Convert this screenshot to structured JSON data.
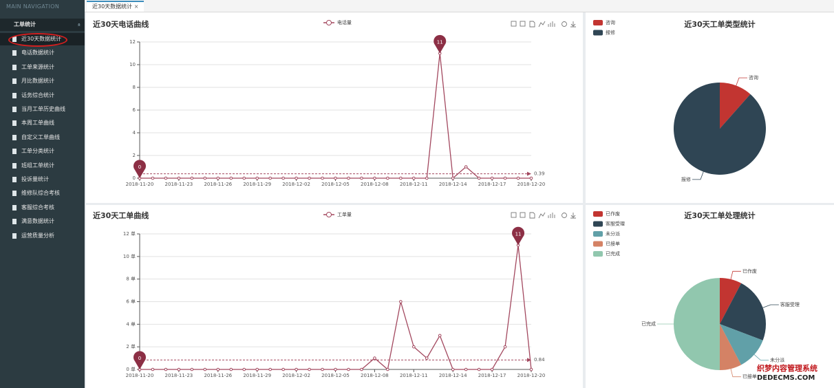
{
  "sidebar": {
    "header": "MAIN NAVIGATION",
    "group": "工单统计",
    "items": [
      "近30天数据统计",
      "电话数据统计",
      "工单来源统计",
      "月比数据统计",
      "话务综合统计",
      "当月工单历史曲线",
      "本周工单曲线",
      "自定义工单曲线",
      "工单分类统计",
      "班组工单统计",
      "投诉量统计",
      "维修队综合考核",
      "客服综合考核",
      "满意数据统计",
      "运营质量分析"
    ]
  },
  "tab": "近30天数据统计",
  "watermark": {
    "line1": "织梦内容管理系统",
    "line2": "DEDECMS.COM"
  },
  "chart_data": [
    {
      "type": "line",
      "title": "近30天电话曲线",
      "categories": [
        "2018-11-20",
        null,
        null,
        "2018-11-23",
        null,
        null,
        "2018-11-26",
        null,
        null,
        "2018-11-29",
        null,
        null,
        "2018-12-02",
        null,
        null,
        "2018-12-05",
        null,
        null,
        "2018-12-08",
        null,
        null,
        "2018-12-11",
        null,
        null,
        "2018-12-14",
        null,
        null,
        "2018-12-17",
        null,
        null,
        "2018-12-20"
      ],
      "series": [
        {
          "name": "电话量",
          "color": "#a2475e",
          "values": [
            0,
            0,
            0,
            0,
            0,
            0,
            0,
            0,
            0,
            0,
            0,
            0,
            0,
            0,
            0,
            0,
            0,
            0,
            0,
            0,
            0,
            0,
            0,
            11,
            0,
            1,
            0,
            0,
            0,
            0,
            0
          ]
        }
      ],
      "average": 0.39,
      "ylim": [
        0,
        12
      ],
      "yticks": [
        0,
        2,
        4,
        6,
        8,
        10,
        12
      ],
      "grid": true
    },
    {
      "type": "line",
      "title": "近30天工单曲线",
      "categories": [
        "2018-11-20",
        null,
        null,
        "2018-11-23",
        null,
        null,
        "2018-11-26",
        null,
        null,
        "2018-11-29",
        null,
        null,
        "2018-12-02",
        null,
        null,
        "2018-12-05",
        null,
        null,
        "2018-12-08",
        null,
        null,
        "2018-12-11",
        null,
        null,
        "2018-12-14",
        null,
        null,
        "2018-12-17",
        null,
        null,
        "2018-12-20"
      ],
      "series": [
        {
          "name": "工单量",
          "color": "#a2475e",
          "values": [
            0,
            0,
            0,
            0,
            0,
            0,
            0,
            0,
            0,
            0,
            0,
            0,
            0,
            0,
            0,
            0,
            0,
            0,
            1,
            0,
            6,
            2,
            1,
            3,
            0,
            0,
            0,
            0,
            2,
            11,
            0
          ]
        }
      ],
      "average": 0.84,
      "ylim": [
        0,
        12
      ],
      "yticks": [
        {
          "value": 0,
          "label": "0 单"
        },
        {
          "value": 2,
          "label": "2 单"
        },
        {
          "value": 4,
          "label": "4 单"
        },
        {
          "value": 6,
          "label": "6 单"
        },
        {
          "value": 8,
          "label": "8 单"
        },
        {
          "value": 10,
          "label": "10 单"
        },
        {
          "value": 12,
          "label": "12 单"
        }
      ],
      "grid": true
    },
    {
      "type": "pie",
      "title": "近30天工单类型统计",
      "categories": [
        "咨询",
        "报修"
      ],
      "values": [
        3,
        23
      ],
      "colors": [
        "#c23531",
        "#2f4554"
      ]
    },
    {
      "type": "pie",
      "title": "近30天工单处理统计",
      "categories": [
        "已作废",
        "客服受理",
        "未分派",
        "已接单",
        "已完成"
      ],
      "values": [
        2,
        6,
        3,
        2,
        13
      ],
      "colors": [
        "#c23531",
        "#2f4554",
        "#61a0a8",
        "#d48265",
        "#91c7ae"
      ]
    }
  ]
}
